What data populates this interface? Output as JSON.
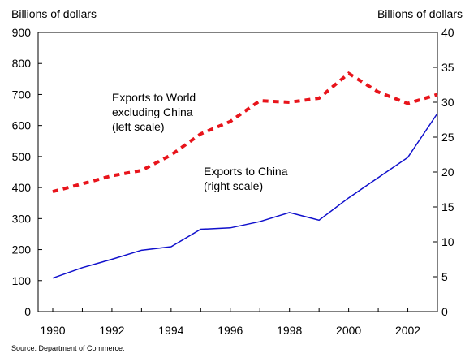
{
  "chart_data": {
    "type": "line",
    "left_axis": {
      "unit_label": "Billions of dollars",
      "ylim": [
        0,
        900
      ],
      "ticks": [
        0,
        100,
        200,
        300,
        400,
        500,
        600,
        700,
        800,
        900
      ]
    },
    "right_axis": {
      "unit_label": "Billions of dollars",
      "ylim": [
        0,
        40
      ],
      "ticks": [
        0,
        5,
        10,
        15,
        20,
        25,
        30,
        35,
        40
      ]
    },
    "x": [
      1990,
      1991,
      1992,
      1993,
      1994,
      1995,
      1996,
      1997,
      1998,
      1999,
      2000,
      2001,
      2002,
      2003
    ],
    "xlim": [
      1990,
      2003
    ],
    "x_ticks": [
      "1990",
      "1992",
      "1994",
      "1996",
      "1998",
      "2000",
      "2002"
    ],
    "grid": false,
    "series": [
      {
        "name": "Exports to World excluding China (left scale)",
        "axis": "left",
        "color": "#e8141b",
        "style": "dashed",
        "values": [
          387,
          412,
          438,
          455,
          505,
          573,
          613,
          680,
          675,
          688,
          768,
          708,
          671,
          700
        ]
      },
      {
        "name": "Exports to China (right scale)",
        "axis": "right",
        "color": "#1010cc",
        "style": "solid",
        "values": [
          4.8,
          6.3,
          7.5,
          8.8,
          9.3,
          11.8,
          12.0,
          12.9,
          14.2,
          13.1,
          16.3,
          19.2,
          22.1,
          28.4
        ]
      }
    ],
    "annotations": [
      {
        "lines": [
          "Exports to World",
          "excluding China",
          "(left scale)"
        ]
      },
      {
        "lines": [
          "Exports to China",
          "(right scale)"
        ]
      }
    ],
    "source": "Source: Department of Commerce."
  }
}
